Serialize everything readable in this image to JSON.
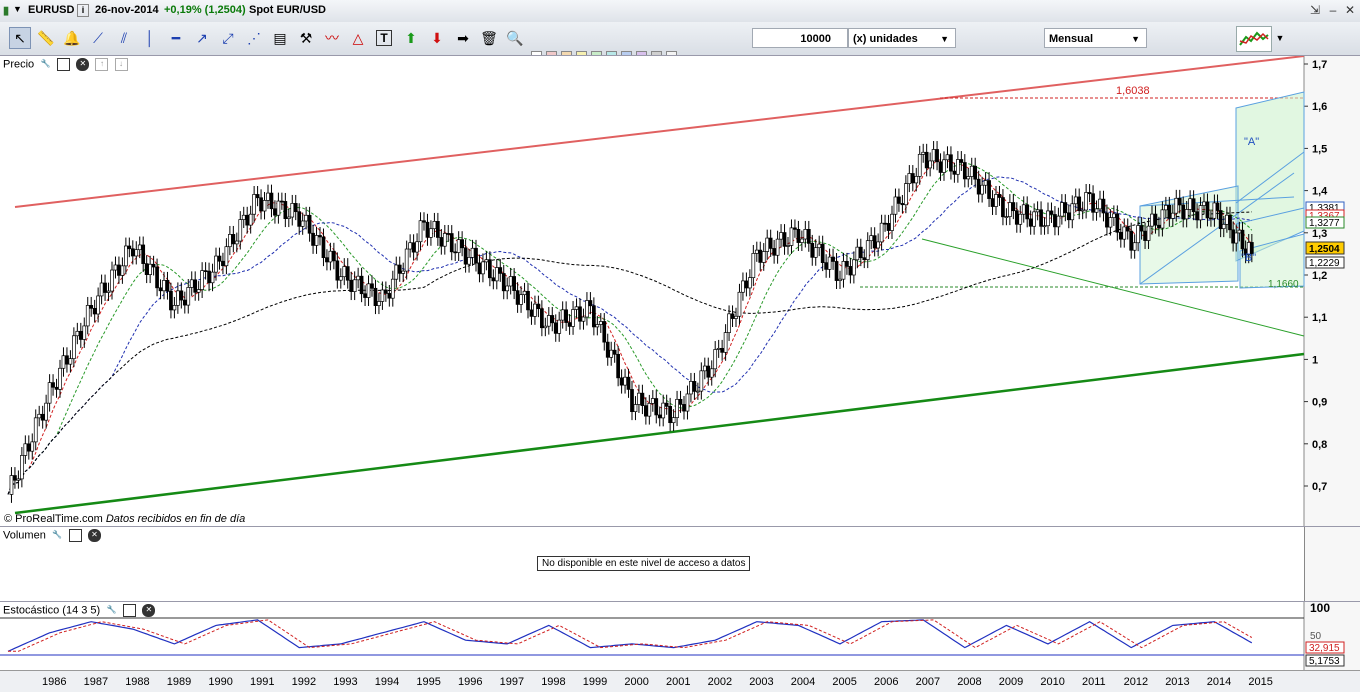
{
  "titlebar": {
    "symbol": "EURUSD",
    "date": "26-nov-2014",
    "change": "+0,19% (1,2504)",
    "name": "Spot EUR/USD"
  },
  "toolbar": {
    "quantity": "10000",
    "units_label": "(x) unidades",
    "period": "Mensual"
  },
  "panels": {
    "price": {
      "label": "Precio",
      "watermark": "© ProRealTime.com",
      "watermark_note": "Datos recibidos en fin de día",
      "annotation_high": "1,6038",
      "annotation_low": "1,1660",
      "annotation_a": "\"A\"",
      "annotation_b": "\"B\"",
      "last_price": "1,2504",
      "label_1_3277": "1,3277",
      "label_1_3367": "1,3367",
      "label_1_3381": "1,3381",
      "label_1_2229": "1,2229",
      "yticks": [
        "1,7",
        "1,6",
        "1,5",
        "1,4",
        "1,3",
        "1,2",
        "1,1",
        "1",
        "0,9",
        "0,8",
        "0,7"
      ]
    },
    "volume": {
      "label": "Volumen",
      "message": "No disponible en este nivel de acceso a datos"
    },
    "stochastic": {
      "label": "Estocástico (14 3 5)",
      "yticks": [
        "100",
        "50"
      ],
      "value_k": "32,915",
      "value_d": "5,1753"
    }
  },
  "xaxis": [
    "1986",
    "1987",
    "1988",
    "1989",
    "1990",
    "1991",
    "1992",
    "1993",
    "1994",
    "1995",
    "1996",
    "1997",
    "1998",
    "1999",
    "2000",
    "2001",
    "2002",
    "2003",
    "2004",
    "2005",
    "2006",
    "2007",
    "2008",
    "2009",
    "2010",
    "2011",
    "2012",
    "2013",
    "2014",
    "2015"
  ],
  "chart_data": {
    "type": "line",
    "title": "EURUSD",
    "x": [
      1985,
      1986,
      1987,
      1988,
      1989,
      1990,
      1991,
      1992,
      1993,
      1994,
      1995,
      1996,
      1997,
      1998,
      1999,
      2000,
      2001,
      2002,
      2003,
      2004,
      2005,
      2006,
      2007,
      2008,
      2009,
      2010,
      2011,
      2012,
      2013,
      2014,
      2014.9
    ],
    "series": [
      {
        "name": "EURUSD",
        "values": [
          0.68,
          0.92,
          1.12,
          1.27,
          1.13,
          1.22,
          1.38,
          1.34,
          1.2,
          1.14,
          1.32,
          1.25,
          1.18,
          1.08,
          1.12,
          0.9,
          0.87,
          1.0,
          1.25,
          1.3,
          1.2,
          1.3,
          1.48,
          1.45,
          1.35,
          1.33,
          1.38,
          1.28,
          1.36,
          1.35,
          1.2504
        ]
      }
    ],
    "ylim": [
      0.62,
      1.72
    ],
    "stochastic": {
      "k": [
        10,
        60,
        90,
        70,
        30,
        80,
        95,
        20,
        30,
        60,
        90,
        40,
        30,
        80,
        20,
        30,
        20,
        40,
        90,
        80,
        30,
        90,
        95,
        20,
        80,
        30,
        90,
        20,
        80,
        90,
        32.915
      ],
      "ylim": [
        0,
        100
      ]
    }
  }
}
